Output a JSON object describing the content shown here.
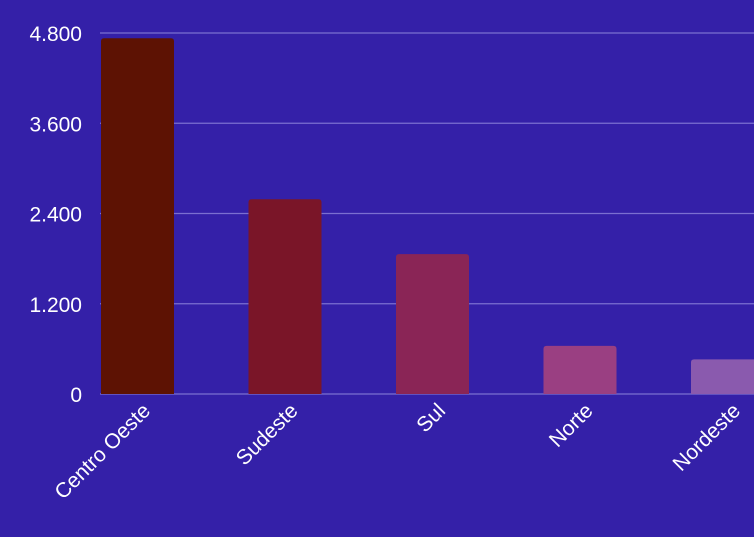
{
  "chart_data": {
    "type": "bar",
    "categories": [
      "Centro Oeste",
      "Sudeste",
      "Sul",
      "Norte",
      "Nordeste"
    ],
    "values": [
      4730,
      2590,
      1860,
      640,
      460
    ],
    "y_ticks": [
      "0",
      "1.200",
      "2.400",
      "3.600",
      "4.800"
    ],
    "ylim": [
      0,
      4800
    ],
    "grid": true,
    "colors": {
      "background": "#3420a8",
      "bars": [
        "#5d1203",
        "#7a1528",
        "#8a2556",
        "#9a3f82",
        "#8a5aae"
      ],
      "grid": "#7b6fd0",
      "text": "#ffffff"
    }
  }
}
